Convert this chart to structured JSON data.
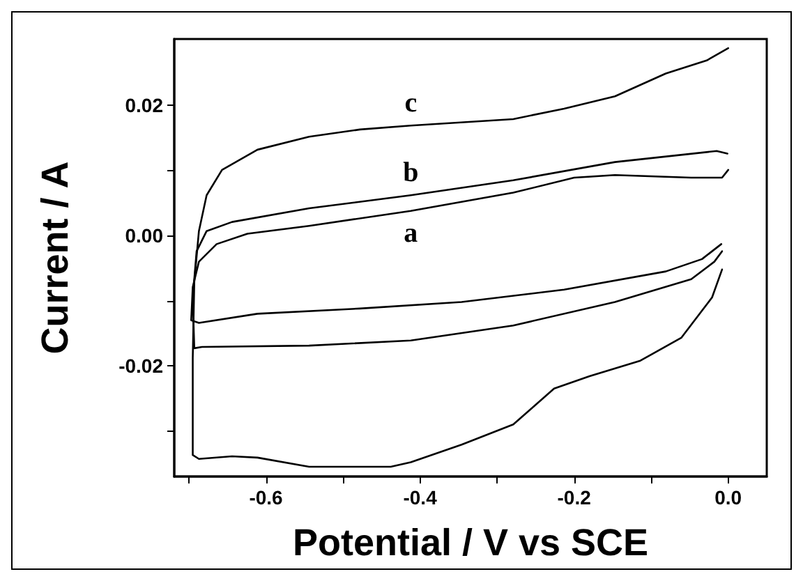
{
  "chart_data": {
    "type": "line",
    "xlabel": "Potential / V vs SCE",
    "ylabel": "Current / A",
    "xlim": [
      -0.719,
      0.05
    ],
    "ylim": [
      -0.037,
      0.0302
    ],
    "xticks": [
      {
        "value": -0.7,
        "label": null
      },
      -0.6,
      {
        "value": -0.5,
        "label": null
      },
      -0.4,
      {
        "value": -0.3,
        "label": null
      },
      -0.2,
      {
        "value": -0.1,
        "label": null
      },
      {
        "value": 0,
        "label": "0.0"
      }
    ],
    "yticks": [
      {
        "value": -0.03,
        "label": null
      },
      {
        "value": -0.02,
        "label": "-0.02"
      },
      {
        "value": -0.01,
        "label": null
      },
      {
        "value": 0,
        "label": "0.00"
      },
      {
        "value": 0.01,
        "label": null
      },
      {
        "value": 0.02,
        "label": "0.02"
      }
    ],
    "grid": false,
    "marker": "none",
    "line_style": "solid",
    "series": [
      {
        "name": "c",
        "color": "#000000",
        "x": [
          0,
          -0.028,
          -0.081,
          -0.147,
          -0.213,
          -0.279,
          -0.412,
          -0.478,
          -0.544,
          -0.611,
          -0.657,
          -0.677,
          -0.687,
          -0.693,
          -0.695,
          -0.695,
          -0.687,
          -0.644,
          -0.611,
          -0.544,
          -0.438,
          -0.412,
          -0.346,
          -0.279,
          -0.226,
          -0.18,
          -0.114,
          -0.061,
          -0.021,
          -0.008
        ],
        "values": [
          0.0288,
          0.0269,
          0.0249,
          0.0214,
          0.0195,
          0.0179,
          0.0169,
          0.0163,
          0.0152,
          0.0132,
          0.0101,
          0.0062,
          0.0007,
          -0.0071,
          -0.0188,
          -0.0337,
          -0.0343,
          -0.0339,
          -0.0341,
          -0.0355,
          -0.0355,
          -0.0348,
          -0.0321,
          -0.029,
          -0.0235,
          -0.0216,
          -0.0192,
          -0.0157,
          -0.0095,
          -0.0052
        ]
      },
      {
        "name": "b",
        "color": "#000000",
        "x": [
          -0.001,
          -0.015,
          -0.147,
          -0.279,
          -0.412,
          -0.544,
          -0.644,
          -0.677,
          -0.69,
          -0.695,
          -0.693,
          -0.683,
          -0.544,
          -0.412,
          -0.279,
          -0.147,
          -0.048,
          -0.018,
          -0.008
        ],
        "values": [
          0.0126,
          0.013,
          0.0113,
          0.0085,
          0.0062,
          0.0042,
          0.0021,
          0.0007,
          -0.0024,
          -0.0095,
          -0.0173,
          -0.0171,
          -0.0169,
          -0.0161,
          -0.0138,
          -0.0102,
          -0.0067,
          -0.004,
          -0.0024
        ]
      },
      {
        "name": "a",
        "color": "#000000",
        "x": [
          0,
          -0.008,
          -0.048,
          -0.147,
          -0.2,
          -0.279,
          -0.412,
          -0.544,
          -0.624,
          -0.664,
          -0.687,
          -0.695,
          -0.697,
          -0.687,
          -0.611,
          -0.478,
          -0.346,
          -0.213,
          -0.081,
          -0.034,
          -0.009
        ],
        "values": [
          0.0101,
          0.0089,
          0.0089,
          0.0093,
          0.0089,
          0.0066,
          0.0038,
          0.0015,
          0.0003,
          -0.0013,
          -0.004,
          -0.0079,
          -0.013,
          -0.0134,
          -0.012,
          -0.0112,
          -0.0102,
          -0.0083,
          -0.0055,
          -0.0036,
          -0.0013
        ]
      }
    ]
  }
}
